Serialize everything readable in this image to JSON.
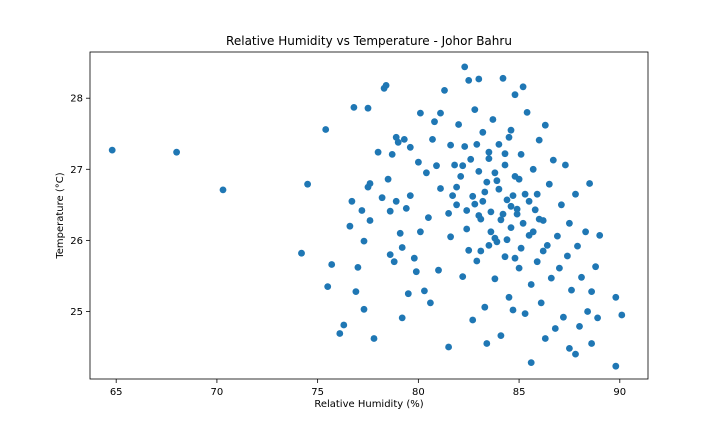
{
  "chart_data": {
    "type": "scatter",
    "title": "Relative Humidity vs Temperature - Johor Bahru",
    "xlabel": "Relative Humidity (%)",
    "ylabel": "Temperature (°C)",
    "xlim": [
      63.7,
      91.4
    ],
    "ylim": [
      24.05,
      28.65
    ],
    "xticks": [
      65,
      70,
      75,
      80,
      85,
      90
    ],
    "yticks": [
      25,
      26,
      27,
      28
    ],
    "grid": false,
    "legend": "none",
    "marker_color": "#1f77b4",
    "points": [
      [
        64.8,
        27.27
      ],
      [
        68.0,
        27.24
      ],
      [
        70.3,
        26.71
      ],
      [
        74.2,
        25.82
      ],
      [
        74.5,
        26.79
      ],
      [
        75.4,
        27.56
      ],
      [
        75.5,
        25.35
      ],
      [
        75.7,
        25.66
      ],
      [
        76.1,
        24.69
      ],
      [
        76.3,
        24.81
      ],
      [
        76.6,
        26.2
      ],
      [
        76.7,
        26.55
      ],
      [
        76.8,
        27.87
      ],
      [
        76.9,
        25.28
      ],
      [
        77.0,
        25.62
      ],
      [
        77.2,
        26.42
      ],
      [
        77.3,
        25.99
      ],
      [
        77.3,
        25.03
      ],
      [
        77.5,
        27.86
      ],
      [
        77.5,
        26.75
      ],
      [
        77.6,
        26.8
      ],
      [
        77.6,
        26.28
      ],
      [
        77.8,
        24.62
      ],
      [
        78.0,
        27.24
      ],
      [
        78.2,
        26.6
      ],
      [
        78.3,
        28.14
      ],
      [
        78.4,
        28.18
      ],
      [
        78.5,
        26.86
      ],
      [
        78.6,
        25.8
      ],
      [
        78.6,
        26.41
      ],
      [
        78.7,
        27.21
      ],
      [
        78.8,
        25.7
      ],
      [
        78.9,
        26.55
      ],
      [
        78.9,
        27.45
      ],
      [
        79.0,
        27.38
      ],
      [
        79.1,
        26.1
      ],
      [
        79.2,
        24.91
      ],
      [
        79.2,
        25.9
      ],
      [
        79.3,
        27.42
      ],
      [
        79.4,
        26.45
      ],
      [
        79.5,
        25.25
      ],
      [
        79.6,
        27.31
      ],
      [
        79.6,
        26.63
      ],
      [
        79.8,
        25.75
      ],
      [
        79.9,
        25.56
      ],
      [
        80.0,
        27.1
      ],
      [
        80.1,
        26.12
      ],
      [
        80.1,
        27.79
      ],
      [
        80.3,
        25.29
      ],
      [
        80.4,
        26.95
      ],
      [
        80.5,
        26.32
      ],
      [
        80.6,
        25.12
      ],
      [
        80.7,
        27.42
      ],
      [
        80.8,
        27.67
      ],
      [
        80.9,
        27.05
      ],
      [
        81.0,
        25.58
      ],
      [
        81.1,
        26.73
      ],
      [
        81.1,
        27.79
      ],
      [
        81.3,
        28.11
      ],
      [
        81.5,
        24.5
      ],
      [
        81.6,
        27.34
      ],
      [
        81.6,
        26.05
      ],
      [
        81.7,
        26.63
      ],
      [
        81.8,
        27.06
      ],
      [
        81.9,
        26.5
      ],
      [
        82.0,
        27.63
      ],
      [
        82.1,
        26.9
      ],
      [
        82.2,
        25.49
      ],
      [
        82.3,
        28.44
      ],
      [
        82.3,
        27.32
      ],
      [
        82.4,
        26.16
      ],
      [
        82.5,
        28.25
      ],
      [
        82.5,
        25.86
      ],
      [
        82.6,
        27.14
      ],
      [
        82.7,
        24.88
      ],
      [
        82.8,
        26.51
      ],
      [
        82.8,
        27.84
      ],
      [
        82.9,
        25.71
      ],
      [
        83.0,
        26.97
      ],
      [
        83.0,
        28.27
      ],
      [
        83.1,
        26.3
      ],
      [
        83.2,
        27.52
      ],
      [
        83.3,
        25.06
      ],
      [
        83.3,
        26.68
      ],
      [
        83.4,
        24.55
      ],
      [
        83.5,
        27.24
      ],
      [
        83.5,
        25.93
      ],
      [
        83.6,
        26.4
      ],
      [
        83.7,
        27.7
      ],
      [
        83.8,
        26.03
      ],
      [
        83.8,
        25.46
      ],
      [
        83.9,
        26.84
      ],
      [
        84.0,
        27.35
      ],
      [
        84.1,
        24.66
      ],
      [
        84.1,
        26.29
      ],
      [
        84.2,
        28.28
      ],
      [
        84.3,
        25.77
      ],
      [
        84.3,
        27.06
      ],
      [
        84.4,
        26.57
      ],
      [
        84.5,
        25.2
      ],
      [
        84.6,
        27.55
      ],
      [
        84.6,
        26.18
      ],
      [
        84.7,
        25.02
      ],
      [
        84.8,
        26.9
      ],
      [
        84.8,
        28.05
      ],
      [
        84.9,
        26.37
      ],
      [
        85.0,
        25.61
      ],
      [
        85.1,
        27.21
      ],
      [
        85.1,
        25.89
      ],
      [
        85.2,
        28.16
      ],
      [
        85.3,
        26.65
      ],
      [
        85.3,
        24.97
      ],
      [
        85.4,
        27.8
      ],
      [
        85.5,
        26.07
      ],
      [
        85.6,
        24.28
      ],
      [
        85.6,
        25.38
      ],
      [
        85.7,
        27.0
      ],
      [
        85.8,
        26.43
      ],
      [
        85.9,
        25.7
      ],
      [
        86.0,
        27.41
      ],
      [
        86.1,
        25.12
      ],
      [
        86.2,
        26.28
      ],
      [
        86.3,
        27.62
      ],
      [
        86.3,
        24.62
      ],
      [
        86.4,
        25.93
      ],
      [
        86.5,
        26.79
      ],
      [
        86.6,
        25.47
      ],
      [
        86.7,
        27.13
      ],
      [
        86.8,
        24.76
      ],
      [
        86.9,
        26.06
      ],
      [
        87.0,
        25.61
      ],
      [
        87.1,
        26.5
      ],
      [
        87.2,
        24.92
      ],
      [
        87.3,
        27.06
      ],
      [
        87.4,
        25.78
      ],
      [
        87.5,
        24.48
      ],
      [
        87.5,
        26.24
      ],
      [
        87.6,
        25.3
      ],
      [
        87.8,
        26.65
      ],
      [
        87.8,
        24.4
      ],
      [
        87.9,
        25.92
      ],
      [
        88.0,
        24.79
      ],
      [
        88.1,
        25.48
      ],
      [
        88.3,
        26.12
      ],
      [
        88.4,
        25.0
      ],
      [
        88.5,
        26.8
      ],
      [
        88.6,
        25.28
      ],
      [
        88.6,
        24.55
      ],
      [
        88.8,
        25.63
      ],
      [
        88.9,
        24.91
      ],
      [
        89.0,
        26.07
      ],
      [
        89.8,
        25.2
      ],
      [
        89.8,
        24.23
      ],
      [
        90.1,
        24.95
      ],
      [
        83.2,
        26.55
      ],
      [
        83.6,
        26.12
      ],
      [
        84.0,
        26.72
      ],
      [
        84.4,
        26.01
      ],
      [
        84.9,
        26.44
      ],
      [
        83.0,
        26.35
      ],
      [
        83.8,
        26.95
      ],
      [
        84.6,
        26.48
      ],
      [
        85.2,
        26.24
      ],
      [
        82.7,
        26.62
      ],
      [
        83.4,
        26.82
      ],
      [
        84.2,
        26.37
      ],
      [
        85.0,
        26.86
      ],
      [
        85.7,
        26.12
      ],
      [
        82.4,
        26.42
      ],
      [
        83.9,
        25.98
      ],
      [
        84.7,
        26.63
      ],
      [
        86.2,
        25.85
      ],
      [
        81.9,
        26.75
      ],
      [
        84.3,
        27.22
      ],
      [
        85.5,
        26.55
      ],
      [
        82.2,
        27.05
      ],
      [
        83.5,
        27.15
      ],
      [
        86.0,
        26.3
      ],
      [
        81.5,
        26.38
      ],
      [
        84.8,
        25.75
      ],
      [
        83.1,
        25.85
      ],
      [
        85.9,
        26.65
      ],
      [
        82.9,
        27.35
      ],
      [
        84.5,
        27.45
      ]
    ]
  }
}
